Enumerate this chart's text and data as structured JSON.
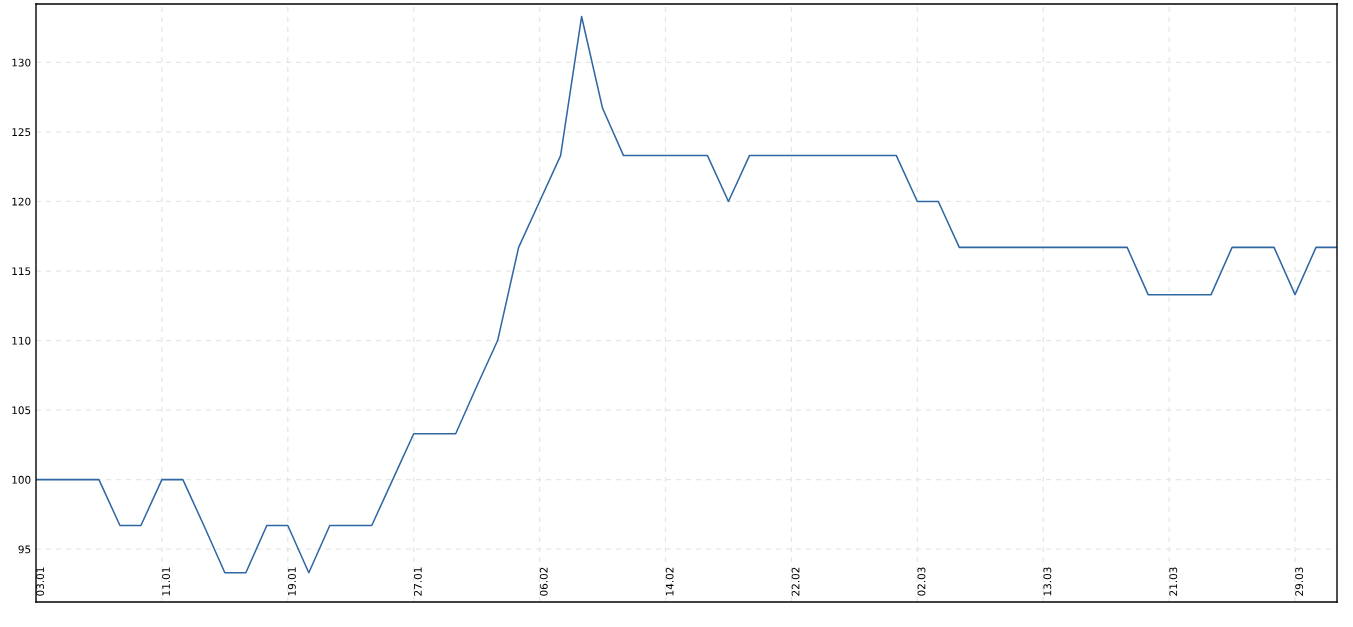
{
  "chart_data": {
    "type": "line",
    "categories": [
      "03.01",
      null,
      null,
      null,
      null,
      null,
      "11.01",
      null,
      null,
      null,
      null,
      null,
      "19.01",
      null,
      null,
      null,
      null,
      null,
      "27.01",
      null,
      null,
      null,
      null,
      null,
      "06.02",
      null,
      null,
      null,
      null,
      null,
      "14.02",
      null,
      null,
      null,
      null,
      null,
      "22.02",
      null,
      null,
      null,
      null,
      null,
      "02.03",
      null,
      null,
      null,
      null,
      null,
      "13.03",
      null,
      null,
      null,
      null,
      null,
      "21.03",
      null,
      null,
      null,
      null,
      null,
      "29.03",
      null,
      null
    ],
    "series": [
      {
        "color": "#2f67a3",
        "values": [
          100,
          100,
          100,
          100,
          96.7,
          96.7,
          100,
          100,
          96.7,
          93.3,
          93.3,
          96.7,
          96.7,
          93.3,
          96.7,
          96.7,
          96.7,
          100,
          103.3,
          103.3,
          103.3,
          106.7,
          110,
          116.7,
          120,
          123.3,
          133.3,
          126.7,
          123.3,
          123.3,
          123.3,
          123.3,
          123.3,
          120,
          123.3,
          123.3,
          123.3,
          123.3,
          123.3,
          123.3,
          123.3,
          123.3,
          120,
          120,
          116.7,
          116.7,
          116.7,
          116.7,
          116.7,
          116.7,
          116.7,
          116.7,
          116.7,
          113.3,
          113.3,
          113.3,
          113.3,
          116.7,
          116.7,
          116.7,
          113.3,
          116.7,
          116.7
        ]
      }
    ],
    "ylim": [
      91.2,
      134.2
    ],
    "yticks": [
      95,
      100,
      105,
      110,
      115,
      120,
      125,
      130
    ],
    "grid": true,
    "marker": "none",
    "line_style": "solid"
  }
}
